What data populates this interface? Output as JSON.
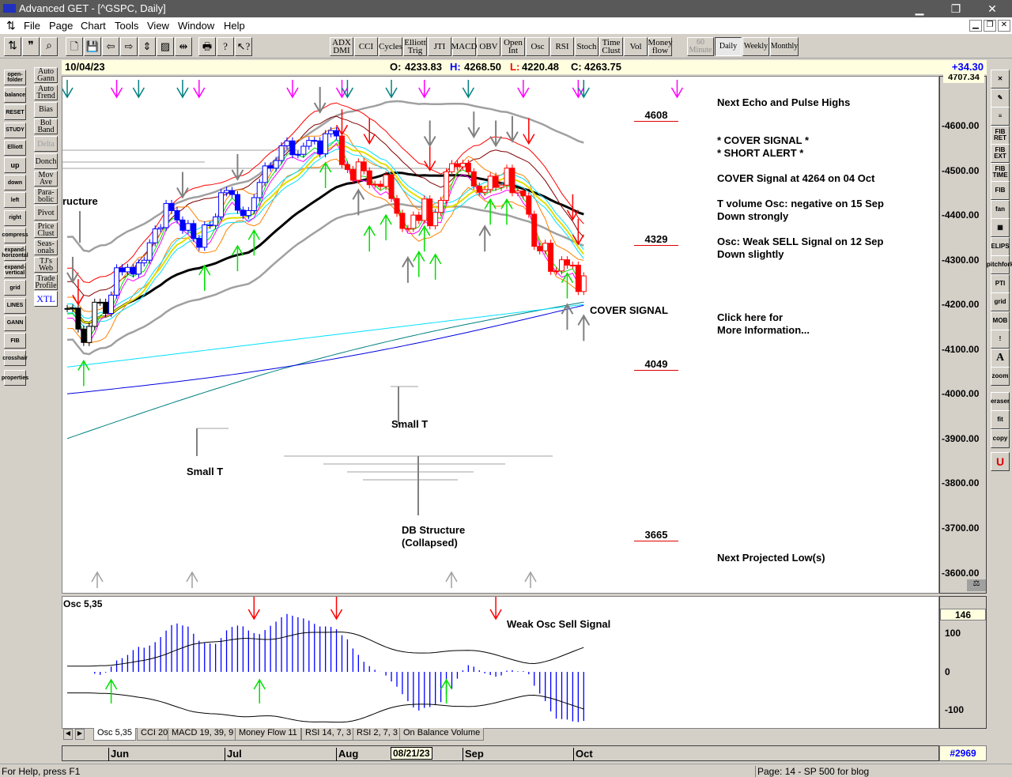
{
  "window": {
    "title": "Advanced GET - [^GSPC, Daily]",
    "minimize": "▁",
    "restore": "❐",
    "close": "✕"
  },
  "menu": [
    "File",
    "Page",
    "Chart",
    "Tools",
    "View",
    "Window",
    "Help"
  ],
  "toolbar": {
    "studies": [
      "ADX DMI",
      "CCI",
      "Cycles",
      "Elliott Trig",
      "JTI",
      "MACD",
      "OBV",
      "Open Int",
      "Osc",
      "RSI",
      "Stoch",
      "Time Clust",
      "Vol",
      "Money flow"
    ],
    "timeframes": [
      "60 Minute",
      "Daily",
      "Weekly",
      "Monthly"
    ],
    "active_timeframe": "Daily"
  },
  "left_tools": [
    "open-folder",
    "balance",
    "RESET",
    "STUDY",
    "Elliott",
    "up",
    "down",
    "left",
    "right",
    "compress",
    "expand-horizontal",
    "expand-vertical",
    "grid",
    "LINES",
    "GANN",
    "FIB",
    "crosshair",
    "properties"
  ],
  "study_buttons": [
    "Auto Gann",
    "Auto Trend",
    "Bias",
    "Bol Band",
    "Delta",
    "Donch",
    "Mov Ave",
    "Para-bolic",
    "Pivot",
    "Price Clust",
    "Seas-onals",
    "TJ's Web",
    "Trade Profile",
    "XTL"
  ],
  "right_tools": [
    "✕",
    "✎",
    "≡",
    "FIB RET",
    "FIB EXT",
    "FIB TIME",
    "FIB",
    "fan",
    "▦",
    "ELIPS",
    "pitchfork",
    "PTI",
    "grid",
    "MOB",
    "!",
    "A",
    "zoom",
    "eraser",
    "fit",
    "copy",
    "U"
  ],
  "info": {
    "date": "10/04/23",
    "open_label": "O:",
    "open": "4233.83",
    "high_label": "H:",
    "high": "4268.50",
    "low_label": "L:",
    "low": "4220.48",
    "close_label": "C:",
    "close": "4263.75",
    "change": "+34.30"
  },
  "price_scale": {
    "top_readout": "4707.34",
    "ticks": [
      "4600.00",
      "4500.00",
      "4400.00",
      "4300.00",
      "4200.00",
      "4100.00",
      "4000.00",
      "3900.00",
      "3800.00",
      "3700.00",
      "3600.00"
    ]
  },
  "annotations": {
    "structure": "ructure",
    "small_t_1": "Small T",
    "small_t_2": "Small T",
    "db_structure": "DB Structure",
    "db_collapsed": "(Collapsed)",
    "cover_signal": "COVER SIGNAL",
    "levels": [
      "4608",
      "4329",
      "4049",
      "3665"
    ]
  },
  "notes": {
    "echo": "Next Echo and Pulse Highs",
    "cover": "* COVER SIGNAL *",
    "short": "* SHORT ALERT *",
    "cover_at": "COVER Signal at 4264 on 04 Oct",
    "tvol": "T volume Osc: negative on 15 Sep",
    "tvol2": "Down strongly",
    "osc": "Osc: Weak SELL Signal on 12 Sep",
    "osc2": "Down slightly",
    "click": "Click here for",
    "more": "More Information...",
    "next_low": "Next Projected Low(s)"
  },
  "osc_panel": {
    "label": "Osc 5,35",
    "signal_text": "Weak Osc Sell Signal",
    "readout": "146",
    "ticks": [
      "100",
      "0",
      "-100"
    ]
  },
  "tabs": [
    "Osc 5,35",
    "CCI 20",
    "MACD 19, 39, 9",
    "Money Flow 11",
    "RSI 14, 7, 3",
    "RSI 2, 7, 3",
    "On Balance Volume"
  ],
  "active_tab": "Osc 5,35",
  "date_axis": {
    "months": [
      "Jun",
      "Jul",
      "Aug",
      "Sep",
      "Oct"
    ],
    "cursor_date": "08/21/23",
    "bar_count": "#2969"
  },
  "status": {
    "help": "For Help, press F1",
    "page": "Page: 14 - SP 500 for blog"
  },
  "chart_data": {
    "type": "candlestick",
    "symbol": "^GSPC",
    "interval": "Daily",
    "ylim": [
      3580,
      4707.34
    ],
    "closes": [
      4191,
      4192,
      4145,
      4115,
      4151,
      4205,
      4205,
      4180,
      4221,
      4282,
      4273,
      4283,
      4268,
      4293,
      4299,
      4338,
      4369,
      4372,
      4426,
      4410,
      4389,
      4366,
      4381,
      4348,
      4328,
      4378,
      4377,
      4396,
      4450,
      4455,
      4446,
      4411,
      4399,
      4410,
      4439,
      4473,
      4510,
      4505,
      4522,
      4555,
      4566,
      4535,
      4536,
      4554,
      4567,
      4566,
      4537,
      4582,
      4589,
      4577,
      4513,
      4502,
      4478,
      4519,
      4499,
      4468,
      4469,
      4464,
      4490,
      4437,
      4404,
      4370,
      4370,
      4400,
      4388,
      4436,
      4376,
      4406,
      4433,
      4497,
      4515,
      4508,
      4516,
      4497,
      4465,
      4451,
      4457,
      4487,
      4462,
      4467,
      4505,
      4450,
      4454,
      4443,
      4402,
      4330,
      4320,
      4337,
      4274,
      4275,
      4300,
      4288,
      4288,
      4229,
      4264
    ],
    "candle_color_by_bar": {
      "black_until": 8,
      "blue_until": 49,
      "red_from": 50
    },
    "colors": {
      "up_arrow": "#00e000",
      "down_arrow": "#ff0000",
      "neutral_arrow": "#808080",
      "time_a": "#008080",
      "time_b": "#ff00ff"
    },
    "time_markers": [
      {
        "bar": 0,
        "c": "time_a"
      },
      {
        "bar": 9,
        "c": "time_b"
      },
      {
        "bar": 13,
        "c": "time_a"
      },
      {
        "bar": 21,
        "c": "time_a"
      },
      {
        "bar": 24,
        "c": "time_b"
      },
      {
        "bar": 41,
        "c": "time_b"
      },
      {
        "bar": 50,
        "c": "time_b"
      },
      {
        "bar": 51,
        "c": "time_a"
      },
      {
        "bar": 59,
        "c": "time_a"
      },
      {
        "bar": 65,
        "c": "time_b"
      },
      {
        "bar": 73,
        "c": "time_a"
      },
      {
        "bar": 83,
        "c": "time_b"
      },
      {
        "bar": 93,
        "c": "time_b"
      },
      {
        "bar": 94,
        "c": "time_a"
      },
      {
        "bar": 111,
        "c": "time_b"
      }
    ],
    "arrows": [
      {
        "bar": 3,
        "price": 4074,
        "dir": "up",
        "c": "up_arrow"
      },
      {
        "bar": 25,
        "price": 4287,
        "dir": "up",
        "c": "up_arrow"
      },
      {
        "bar": 31,
        "price": 4331,
        "dir": "up",
        "c": "up_arrow"
      },
      {
        "bar": 34,
        "price": 4366,
        "dir": "up",
        "c": "up_arrow"
      },
      {
        "bar": 47,
        "price": 4517,
        "dir": "up",
        "c": "up_arrow"
      },
      {
        "bar": 55,
        "price": 4375,
        "dir": "up",
        "c": "up_arrow"
      },
      {
        "bar": 58,
        "price": 4400,
        "dir": "up",
        "c": "up_arrow"
      },
      {
        "bar": 64,
        "price": 4318,
        "dir": "up",
        "c": "up_arrow"
      },
      {
        "bar": 65,
        "price": 4375,
        "dir": "up",
        "c": "up_arrow"
      },
      {
        "bar": 67,
        "price": 4312,
        "dir": "up",
        "c": "up_arrow"
      },
      {
        "bar": 77,
        "price": 4435,
        "dir": "up",
        "c": "up_arrow"
      },
      {
        "bar": 80,
        "price": 4435,
        "dir": "up",
        "c": "up_arrow"
      },
      {
        "bar": 91,
        "price": 4270,
        "dir": "up",
        "c": "up_arrow"
      },
      {
        "bar": 53,
        "price": 4456,
        "dir": "up",
        "c": "neutral_arrow"
      },
      {
        "bar": 62,
        "price": 4305,
        "dir": "up",
        "c": "neutral_arrow"
      },
      {
        "bar": 76,
        "price": 4375,
        "dir": "up",
        "c": "neutral_arrow"
      },
      {
        "bar": 91,
        "price": 4200,
        "dir": "up",
        "c": "neutral_arrow"
      },
      {
        "bar": 94,
        "price": 4175,
        "dir": "up",
        "c": "neutral_arrow"
      },
      {
        "bar": 2,
        "price": 4200,
        "dir": "down",
        "c": "down_arrow"
      },
      {
        "bar": 50,
        "price": 4580,
        "dir": "down",
        "c": "down_arrow"
      },
      {
        "bar": 55,
        "price": 4560,
        "dir": "down",
        "c": "down_arrow"
      },
      {
        "bar": 66,
        "price": 4500,
        "dir": "down",
        "c": "down_arrow"
      },
      {
        "bar": 84,
        "price": 4560,
        "dir": "down",
        "c": "down_arrow"
      },
      {
        "bar": 92,
        "price": 4390,
        "dir": "down",
        "c": "down_arrow"
      },
      {
        "bar": 93,
        "price": 4335,
        "dir": "down",
        "c": "down_arrow"
      },
      {
        "bar": 1,
        "price": 4250,
        "dir": "down",
        "c": "neutral_arrow"
      },
      {
        "bar": 21,
        "price": 4440,
        "dir": "down",
        "c": "neutral_arrow"
      },
      {
        "bar": 31,
        "price": 4480,
        "dir": "down",
        "c": "neutral_arrow"
      },
      {
        "bar": 46,
        "price": 4630,
        "dir": "down",
        "c": "neutral_arrow"
      },
      {
        "bar": 66,
        "price": 4555,
        "dir": "down",
        "c": "neutral_arrow"
      },
      {
        "bar": 74,
        "price": 4575,
        "dir": "down",
        "c": "neutral_arrow"
      },
      {
        "bar": 78,
        "price": 4555,
        "dir": "down",
        "c": "neutral_arrow"
      },
      {
        "bar": 81,
        "price": 4565,
        "dir": "down",
        "c": "neutral_arrow"
      }
    ],
    "osc_arrows": [
      {
        "bar": 34,
        "dir": "down",
        "c": "down_arrow"
      },
      {
        "bar": 49,
        "dir": "down",
        "c": "down_arrow"
      },
      {
        "bar": 78,
        "dir": "down",
        "c": "down_arrow"
      },
      {
        "bar": 8,
        "dir": "up",
        "c": "up_arrow"
      },
      {
        "bar": 35,
        "dir": "up",
        "c": "up_arrow"
      },
      {
        "bar": 69,
        "dir": "up",
        "c": "up_arrow"
      }
    ],
    "osc_ylim": [
      -150,
      180
    ]
  }
}
